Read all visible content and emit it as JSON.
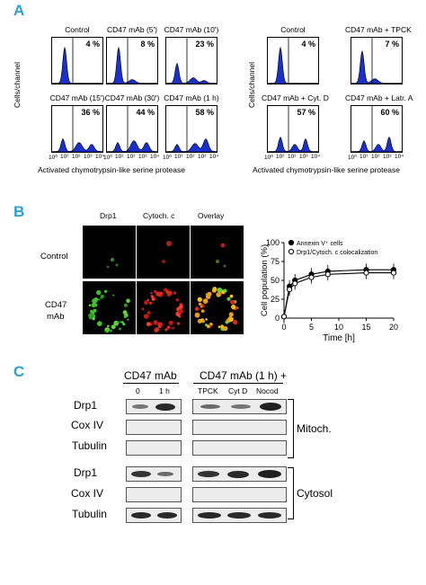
{
  "panelA": {
    "label": "A",
    "ylabel": "Cells/channel",
    "xlabel": "Activated chymotrypsin-like serine protease",
    "xticks": [
      "10⁰",
      "10¹",
      "10²",
      "10³",
      "10⁴"
    ],
    "left_plots": [
      {
        "title": "Control",
        "pct": "4 %"
      },
      {
        "title": "CD47 mAb (5')",
        "pct": "8 %"
      },
      {
        "title": "CD47 mAb (10')",
        "pct": "23 %"
      },
      {
        "title": "CD47 mAb (15')",
        "pct": "36 %"
      },
      {
        "title": "CD47 mAb (30')",
        "pct": "44 %"
      },
      {
        "title": "CD47 mAb (1 h)",
        "pct": "58 %"
      }
    ],
    "right_plots": [
      {
        "title": "Control",
        "pct": "4 %"
      },
      {
        "title": "CD47 mAb + TPCK",
        "pct": "7 %"
      },
      {
        "title": "CD47 mAb + Cyt. D",
        "pct": "57 %"
      },
      {
        "title": "CD47 mAb + Latr. A",
        "pct": "60 %"
      }
    ],
    "hist_color": "#1a2fd0"
  },
  "panelB": {
    "label": "B",
    "columns": [
      "Drp1",
      "Cytoch. c",
      "Overlay"
    ],
    "rows": [
      "Control",
      "CD47",
      "mAb"
    ],
    "chart_data": {
      "type": "line",
      "xlabel": "Time [h]",
      "ylabel": "Cell population (%)",
      "xlim": [
        0,
        20
      ],
      "ylim": [
        0,
        100
      ],
      "xticks": [
        "0",
        "5",
        "10",
        "15",
        "20"
      ],
      "yticks": [
        "0",
        "25",
        "50",
        "75",
        "100"
      ],
      "x": [
        0,
        1,
        2,
        5,
        8,
        15,
        20
      ],
      "series": [
        {
          "name": "Annexin V⁺ cells",
          "marker": "filled",
          "values": [
            2,
            42,
            50,
            58,
            62,
            64,
            64
          ]
        },
        {
          "name": "Drp1/Cytoch. c colocalization",
          "marker": "open",
          "values": [
            2,
            38,
            46,
            54,
            58,
            60,
            60
          ]
        }
      ]
    }
  },
  "panelC": {
    "label": "C",
    "header_left": "CD47 mAb",
    "header_right": "CD47 mAb (1 h) +",
    "lanes_left": [
      "0",
      "1 h"
    ],
    "lanes_right": [
      "TPCK",
      "Cyt D",
      "Nocod"
    ],
    "mito_rows": [
      "Drp1",
      "Cox IV",
      "Tubulin"
    ],
    "cyto_rows": [
      "Drp1",
      "Cox IV",
      "Tubulin"
    ],
    "mito_label": "Mitoch.",
    "cyto_label": "Cytosol"
  }
}
